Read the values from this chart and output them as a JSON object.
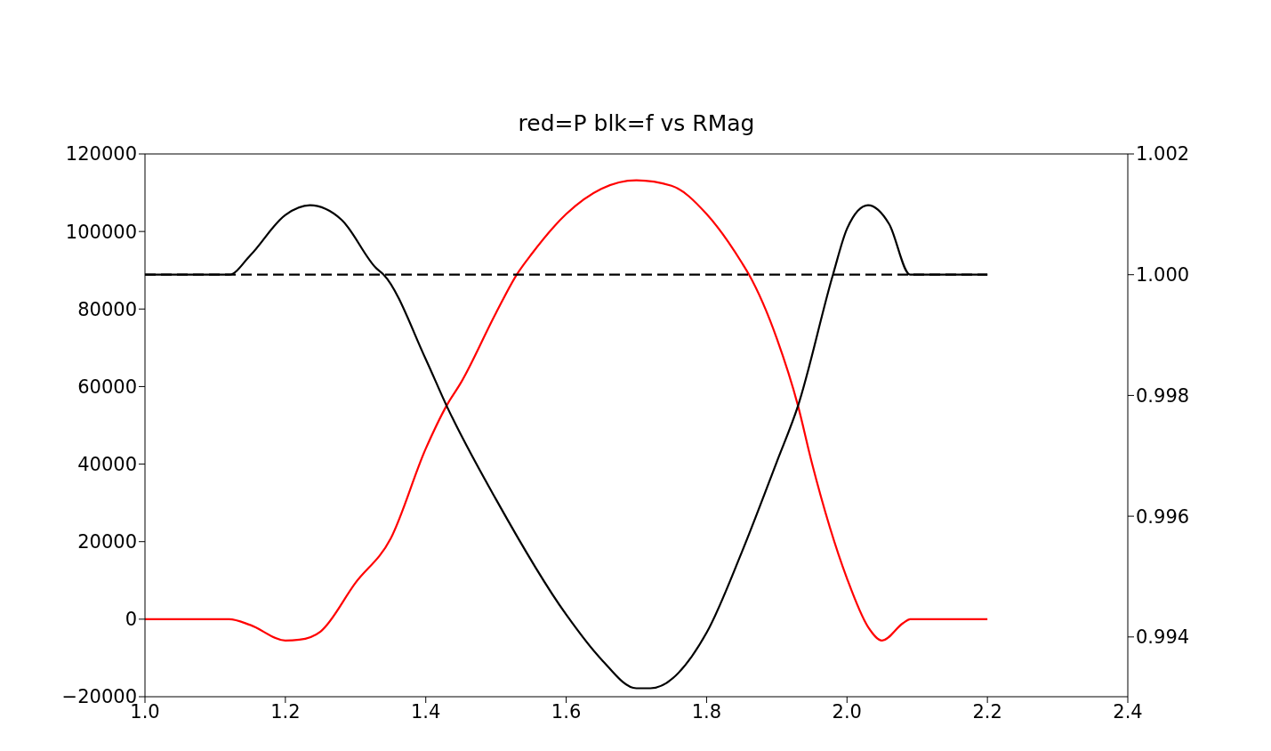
{
  "chart_data": {
    "type": "line",
    "title": "red=P blk=f vs RMag",
    "xlim": [
      1.0,
      2.4
    ],
    "xticks": [
      {
        "value": 1.0,
        "label": "1.0"
      },
      1.2,
      1.4,
      1.6,
      1.8,
      {
        "value": 2.0,
        "label": "2.0"
      },
      2.2,
      2.4
    ],
    "ylim": [
      -20000,
      120000
    ],
    "yticks": [
      {
        "value": -20000,
        "label": "−20000"
      },
      0,
      20000,
      40000,
      60000,
      80000,
      100000,
      120000
    ],
    "y2lim": [
      0.99301,
      1.002
    ],
    "y2ticks": [
      0.994,
      0.996,
      0.998,
      {
        "value": 1.0,
        "label": "1.000"
      },
      1.002
    ],
    "marker": "none",
    "series": [
      {
        "color": "#ff0000",
        "x": [
          1.0,
          1.12,
          1.15,
          1.2,
          1.22,
          1.25,
          1.3,
          1.35,
          1.4,
          1.43,
          1.45,
          1.5,
          1.53,
          1.55,
          1.6,
          1.65,
          1.7,
          1.75,
          1.8,
          1.85,
          1.86,
          1.9,
          1.93,
          1.95,
          2.0,
          2.03,
          2.05,
          2.08,
          2.09,
          2.2
        ],
        "values": [
          0,
          0,
          -1500,
          -5500,
          -5300,
          -3200,
          9400,
          20800,
          44000,
          55200,
          61000,
          79000,
          89000,
          94000,
          104500,
          111000,
          113200,
          111800,
          104500,
          92000,
          89000,
          72400,
          55200,
          40300,
          10500,
          -2000,
          -5500,
          -1000,
          0,
          0
        ]
      },
      {
        "color": "#000000",
        "axis": "y2",
        "x": [
          1.0,
          1.12,
          1.15,
          1.2,
          1.235,
          1.28,
          1.33,
          1.34,
          1.4,
          1.43,
          1.5,
          1.6,
          1.65,
          1.7,
          1.72,
          1.8,
          1.85,
          1.9,
          1.93,
          1.98,
          2.0,
          2.03,
          2.06,
          2.09,
          2.2
        ],
        "values": [
          1.0,
          1.0,
          1.00032,
          1.00099,
          1.00115,
          1.00091,
          1.0001,
          1.0,
          0.9986,
          0.99782,
          0.99628,
          0.99437,
          0.99363,
          0.99315,
          0.99315,
          0.99407,
          0.9954,
          0.9969,
          0.99782,
          1.0,
          1.00076,
          1.00115,
          1.00084,
          1.0,
          1.0
        ]
      },
      {
        "color": "#000000",
        "axis": "y2",
        "line_style": "dashed",
        "x": [
          1.0,
          2.2
        ],
        "values": [
          1.0,
          1.0
        ]
      }
    ]
  }
}
